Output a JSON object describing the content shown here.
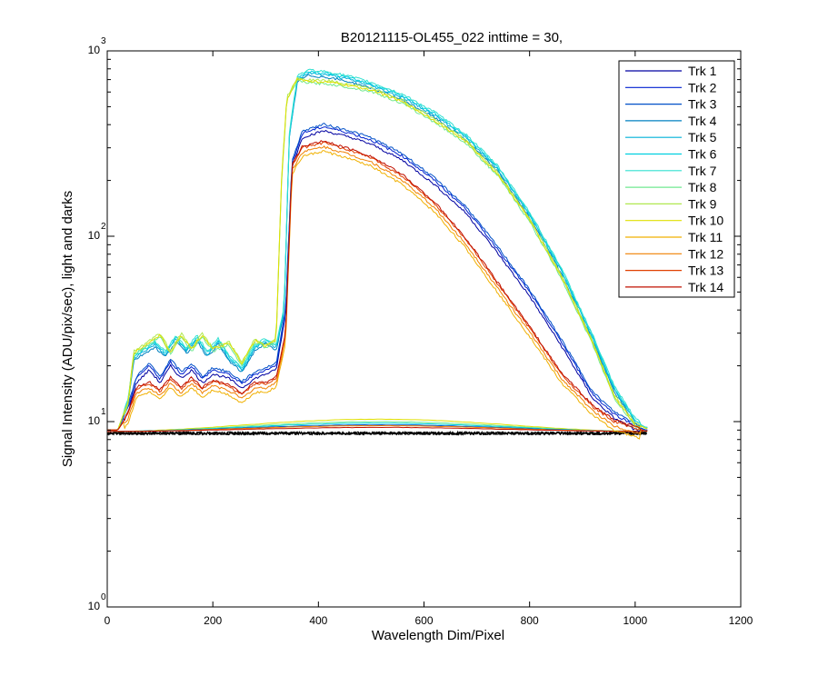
{
  "chart_data": {
    "type": "line",
    "title": "B20121115-OL455_022 inttime = 30,",
    "xlabel": "Wavelength Dim/Pixel",
    "ylabel": "Signal Intensity (ADU/pix/sec), light and darks",
    "xlim": [
      0,
      1200
    ],
    "ylim": [
      1,
      1000
    ],
    "yscale": "log",
    "grid": false,
    "legend_position": "top-right",
    "x_ticks": [
      "0",
      "200",
      "400",
      "600",
      "800",
      "1000",
      "1200"
    ],
    "y_ticks": [
      {
        "base": "10",
        "exp": "0"
      },
      {
        "base": "10",
        "exp": "1"
      },
      {
        "base": "10",
        "exp": "2"
      },
      {
        "base": "10",
        "exp": "3"
      }
    ],
    "series": [
      {
        "name": "Trk 1",
        "color": "#0000a0",
        "group": "blue"
      },
      {
        "name": "Trk 2",
        "color": "#0020d0",
        "group": "blue"
      },
      {
        "name": "Trk 3",
        "color": "#0050c8",
        "group": "blue"
      },
      {
        "name": "Trk 4",
        "color": "#0080c0",
        "group": "cyan"
      },
      {
        "name": "Trk 5",
        "color": "#00b0d8",
        "group": "cyan"
      },
      {
        "name": "Trk 6",
        "color": "#00d0e0",
        "group": "cyan"
      },
      {
        "name": "Trk 7",
        "color": "#30e0d0",
        "group": "cyan"
      },
      {
        "name": "Trk 8",
        "color": "#70e890",
        "group": "green"
      },
      {
        "name": "Trk 9",
        "color": "#b0e850",
        "group": "green"
      },
      {
        "name": "Trk 10",
        "color": "#e0e000",
        "group": "green"
      },
      {
        "name": "Trk 11",
        "color": "#f0b000",
        "group": "red"
      },
      {
        "name": "Trk 12",
        "color": "#f08000",
        "group": "red"
      },
      {
        "name": "Trk 13",
        "color": "#e04000",
        "group": "red"
      },
      {
        "name": "Trk 14",
        "color": "#c01000",
        "group": "red"
      }
    ],
    "envelopes": {
      "cyan": [
        [
          0,
          9.0
        ],
        [
          20,
          9.0
        ],
        [
          40,
          13
        ],
        [
          50,
          22
        ],
        [
          70,
          24
        ],
        [
          90,
          26
        ],
        [
          110,
          23
        ],
        [
          130,
          28
        ],
        [
          150,
          24
        ],
        [
          170,
          28
        ],
        [
          190,
          23
        ],
        [
          210,
          27
        ],
        [
          230,
          22
        ],
        [
          255,
          19
        ],
        [
          280,
          25
        ],
        [
          300,
          27
        ],
        [
          320,
          25
        ],
        [
          335,
          40
        ],
        [
          345,
          350
        ],
        [
          360,
          700
        ],
        [
          380,
          760
        ],
        [
          420,
          740
        ],
        [
          460,
          700
        ],
        [
          500,
          650
        ],
        [
          560,
          560
        ],
        [
          620,
          450
        ],
        [
          680,
          340
        ],
        [
          740,
          230
        ],
        [
          800,
          130
        ],
        [
          860,
          65
        ],
        [
          920,
          28
        ],
        [
          960,
          15
        ],
        [
          1000,
          10
        ],
        [
          1020,
          9.3
        ]
      ],
      "green": [
        [
          0,
          9.0
        ],
        [
          20,
          9.0
        ],
        [
          40,
          13
        ],
        [
          50,
          24
        ],
        [
          70,
          26
        ],
        [
          100,
          30
        ],
        [
          120,
          24
        ],
        [
          140,
          30
        ],
        [
          160,
          25
        ],
        [
          180,
          30
        ],
        [
          200,
          25
        ],
        [
          230,
          27
        ],
        [
          255,
          21
        ],
        [
          280,
          28
        ],
        [
          300,
          26
        ],
        [
          320,
          28
        ],
        [
          330,
          200
        ],
        [
          340,
          560
        ],
        [
          360,
          720
        ],
        [
          380,
          700
        ],
        [
          420,
          690
        ],
        [
          460,
          660
        ],
        [
          500,
          630
        ],
        [
          560,
          540
        ],
        [
          620,
          430
        ],
        [
          680,
          330
        ],
        [
          740,
          220
        ],
        [
          800,
          125
        ],
        [
          860,
          62
        ],
        [
          920,
          27
        ],
        [
          960,
          14
        ],
        [
          1000,
          9.8
        ],
        [
          1020,
          9.2
        ]
      ],
      "blue": [
        [
          0,
          9.0
        ],
        [
          20,
          9.0
        ],
        [
          40,
          12
        ],
        [
          55,
          17
        ],
        [
          80,
          20
        ],
        [
          100,
          17
        ],
        [
          120,
          21
        ],
        [
          140,
          18
        ],
        [
          160,
          20
        ],
        [
          180,
          17
        ],
        [
          200,
          19
        ],
        [
          230,
          18
        ],
        [
          255,
          16
        ],
        [
          280,
          18
        ],
        [
          300,
          19
        ],
        [
          320,
          20
        ],
        [
          338,
          40
        ],
        [
          350,
          250
        ],
        [
          370,
          360
        ],
        [
          410,
          390
        ],
        [
          460,
          360
        ],
        [
          500,
          330
        ],
        [
          560,
          270
        ],
        [
          620,
          200
        ],
        [
          680,
          140
        ],
        [
          740,
          85
        ],
        [
          800,
          50
        ],
        [
          860,
          27
        ],
        [
          920,
          14
        ],
        [
          960,
          11
        ],
        [
          1000,
          9.5
        ],
        [
          1020,
          9.0
        ]
      ],
      "red": [
        [
          0,
          9.0
        ],
        [
          20,
          9.0
        ],
        [
          40,
          11
        ],
        [
          55,
          15
        ],
        [
          80,
          16
        ],
        [
          100,
          14.5
        ],
        [
          120,
          17
        ],
        [
          140,
          15
        ],
        [
          160,
          17
        ],
        [
          180,
          15
        ],
        [
          200,
          16.5
        ],
        [
          230,
          15.5
        ],
        [
          255,
          14
        ],
        [
          280,
          16
        ],
        [
          300,
          16
        ],
        [
          320,
          17
        ],
        [
          338,
          30
        ],
        [
          350,
          240
        ],
        [
          370,
          300
        ],
        [
          410,
          320
        ],
        [
          460,
          290
        ],
        [
          500,
          265
        ],
        [
          560,
          210
        ],
        [
          620,
          150
        ],
        [
          680,
          95
        ],
        [
          740,
          55
        ],
        [
          800,
          32
        ],
        [
          860,
          18
        ],
        [
          920,
          12
        ],
        [
          960,
          10
        ],
        [
          1000,
          9.2
        ],
        [
          1020,
          8.9
        ]
      ]
    },
    "darks": {
      "x_range": [
        0,
        1023
      ],
      "level_min": 8.5,
      "level_max": 8.8,
      "bumps": [
        {
          "color": "#e0e000",
          "peak": 10.3
        },
        {
          "color": "#70e890",
          "peak": 10.0
        },
        {
          "color": "#00d0e0",
          "peak": 9.8
        },
        {
          "color": "#0050c8",
          "peak": 9.6
        },
        {
          "color": "#f08000",
          "peak": 9.5
        },
        {
          "color": "#c01000",
          "peak": 9.3
        }
      ]
    }
  }
}
